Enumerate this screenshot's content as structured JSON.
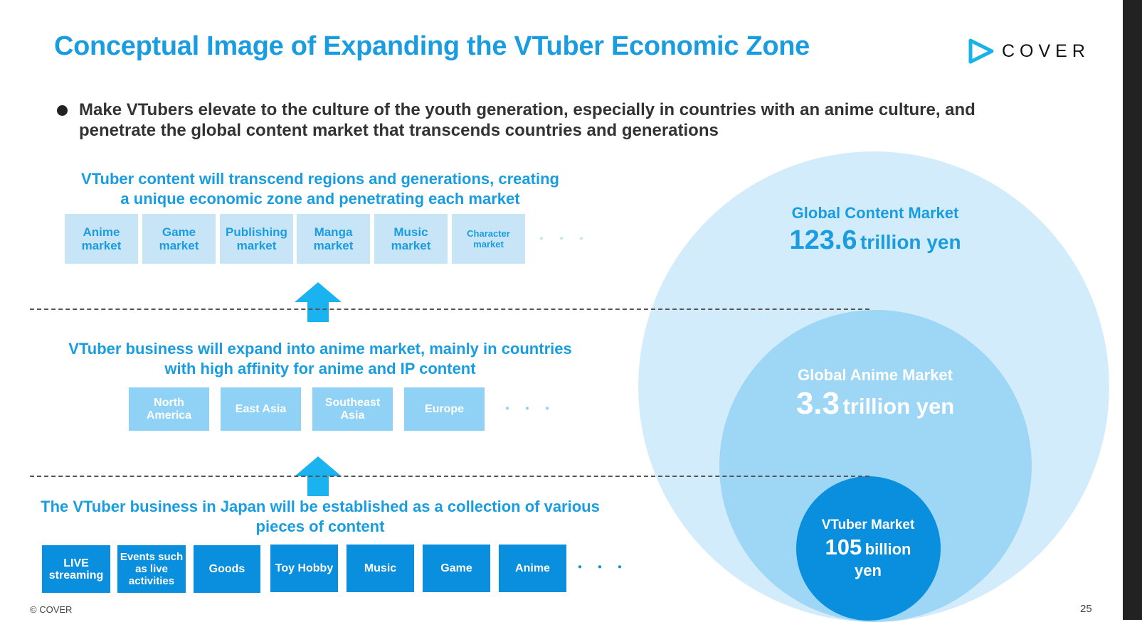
{
  "title": "Conceptual Image of Expanding the VTuber Economic Zone",
  "logo": {
    "text": "COVER",
    "icon": "cover-play-logo-icon"
  },
  "bullet": "Make VTubers elevate to the culture of the youth generation, especially in countries with an anime culture, and penetrate the global content market that transcends countries and generations",
  "level1": {
    "heading_line1": "VTuber content will transcend regions and generations, creating",
    "heading_line2": "a unique economic zone and penetrating each market",
    "boxes": [
      {
        "line1": "Anime",
        "line2": "market"
      },
      {
        "line1": "Game",
        "line2": "market"
      },
      {
        "line1": "Publishing",
        "line2": "market"
      },
      {
        "line1": "Manga",
        "line2": "market"
      },
      {
        "line1": "Music",
        "line2": "market"
      },
      {
        "line1": "Character",
        "line2": "market"
      }
    ],
    "ellipsis": "･･･"
  },
  "level2": {
    "heading_line1": "VTuber business will expand into anime market, mainly in countries",
    "heading_line2": "with high affinity for anime and IP content",
    "boxes": [
      {
        "line1": "North",
        "line2": "America"
      },
      {
        "line1": "East Asia",
        "line2": ""
      },
      {
        "line1": "Southeast",
        "line2": "Asia"
      },
      {
        "line1": "Europe",
        "line2": ""
      }
    ],
    "ellipsis": "･･･"
  },
  "level3": {
    "heading_line1": "The VTuber business in Japan will be established as a collection of various",
    "heading_line2": "pieces of content",
    "boxes": [
      {
        "line1": "LIVE",
        "line2": "streaming",
        "line3": ""
      },
      {
        "line1": "Events such",
        "line2": "as live",
        "line3": "activities"
      },
      {
        "line1": "Goods",
        "line2": "",
        "line3": ""
      },
      {
        "line1": "Toy Hobby",
        "line2": "",
        "line3": ""
      },
      {
        "line1": "Music",
        "line2": "",
        "line3": ""
      },
      {
        "line1": "Game",
        "line2": "",
        "line3": ""
      },
      {
        "line1": "Anime",
        "line2": "",
        "line3": ""
      }
    ],
    "ellipsis": "･･･"
  },
  "circles": {
    "global_content": {
      "label": "Global Content Market",
      "value": "123.6",
      "unit": "trillion yen"
    },
    "global_anime": {
      "label": "Global Anime Market",
      "value": "3.3",
      "unit": "trillion yen"
    },
    "vtuber": {
      "label": "VTuber Market",
      "value": "105",
      "unit": "billion",
      "unit2": "yen"
    }
  },
  "colors": {
    "accent": "#1a9de0",
    "outer_circle": "#d3ecfb",
    "middle_circle": "#9ed6f5",
    "inner_circle": "#0a8ede"
  },
  "footer": "© COVER",
  "page_number": "25"
}
